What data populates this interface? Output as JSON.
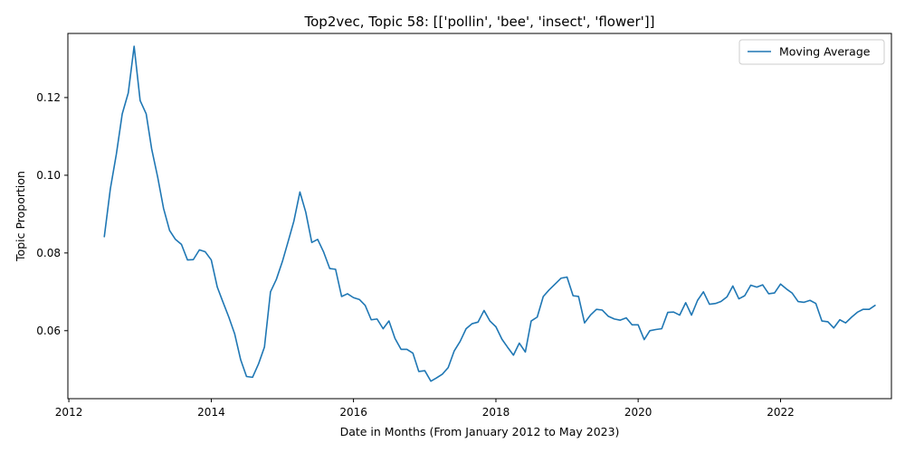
{
  "chart_data": {
    "type": "line",
    "title": "Top2vec, Topic 58: [['pollin', 'bee', 'insect', 'flower']]",
    "xlabel": "Date in Months (From January 2012 to May 2023)",
    "ylabel": "Topic Proportion",
    "xlim": [
      "2011-12-27",
      "2023-07-24"
    ],
    "ylim": [
      0.0425,
      0.1365
    ],
    "x_ticks": [
      "2012",
      "2014",
      "2016",
      "2018",
      "2020",
      "2022"
    ],
    "y_ticks": [
      "0.06",
      "0.08",
      "0.10",
      "0.12"
    ],
    "legend_position": "top-right",
    "grid": false,
    "series": [
      {
        "name": "Moving Average",
        "color": "#1f77b4",
        "points": [
          [
            "2012-07",
            0.0842
          ],
          [
            "2012-08",
            0.0965
          ],
          [
            "2012-09",
            0.1055
          ],
          [
            "2012-10",
            0.1158
          ],
          [
            "2012-11",
            0.1212
          ],
          [
            "2012-12",
            0.1332
          ],
          [
            "2013-01",
            0.1192
          ],
          [
            "2013-02",
            0.1158
          ],
          [
            "2013-03",
            0.1068
          ],
          [
            "2013-04",
            0.0995
          ],
          [
            "2013-05",
            0.0915
          ],
          [
            "2013-06",
            0.0858
          ],
          [
            "2013-07",
            0.0835
          ],
          [
            "2013-08",
            0.0822
          ],
          [
            "2013-09",
            0.0782
          ],
          [
            "2013-10",
            0.0783
          ],
          [
            "2013-11",
            0.0808
          ],
          [
            "2013-12",
            0.0803
          ],
          [
            "2014-01",
            0.0782
          ],
          [
            "2014-02",
            0.0712
          ],
          [
            "2014-03",
            0.0675
          ],
          [
            "2014-04",
            0.0635
          ],
          [
            "2014-05",
            0.0592
          ],
          [
            "2014-06",
            0.0525
          ],
          [
            "2014-07",
            0.0482
          ],
          [
            "2014-08",
            0.048
          ],
          [
            "2014-09",
            0.0515
          ],
          [
            "2014-10",
            0.0558
          ],
          [
            "2014-11",
            0.07
          ],
          [
            "2014-12",
            0.0732
          ],
          [
            "2015-01",
            0.0778
          ],
          [
            "2015-02",
            0.0832
          ],
          [
            "2015-03",
            0.0882
          ],
          [
            "2015-04",
            0.0957
          ],
          [
            "2015-05",
            0.0905
          ],
          [
            "2015-06",
            0.0827
          ],
          [
            "2015-07",
            0.0835
          ],
          [
            "2015-08",
            0.0802
          ],
          [
            "2015-09",
            0.076
          ],
          [
            "2015-10",
            0.0758
          ],
          [
            "2015-11",
            0.0688
          ],
          [
            "2015-12",
            0.0695
          ],
          [
            "2016-01",
            0.0685
          ],
          [
            "2016-02",
            0.068
          ],
          [
            "2016-03",
            0.0665
          ],
          [
            "2016-04",
            0.0628
          ],
          [
            "2016-05",
            0.063
          ],
          [
            "2016-06",
            0.0605
          ],
          [
            "2016-07",
            0.0625
          ],
          [
            "2016-08",
            0.058
          ],
          [
            "2016-09",
            0.0552
          ],
          [
            "2016-10",
            0.0552
          ],
          [
            "2016-11",
            0.0542
          ],
          [
            "2016-12",
            0.0495
          ],
          [
            "2017-01",
            0.0497
          ],
          [
            "2017-02",
            0.047
          ],
          [
            "2017-03",
            0.0478
          ],
          [
            "2017-04",
            0.0488
          ],
          [
            "2017-05",
            0.0505
          ],
          [
            "2017-06",
            0.0548
          ],
          [
            "2017-07",
            0.0572
          ],
          [
            "2017-08",
            0.0605
          ],
          [
            "2017-09",
            0.0618
          ],
          [
            "2017-10",
            0.0622
          ],
          [
            "2017-11",
            0.0652
          ],
          [
            "2017-12",
            0.0625
          ],
          [
            "2018-01",
            0.061
          ],
          [
            "2018-02",
            0.0578
          ],
          [
            "2018-03",
            0.0558
          ],
          [
            "2018-04",
            0.0537
          ],
          [
            "2018-05",
            0.0568
          ],
          [
            "2018-06",
            0.0545
          ],
          [
            "2018-07",
            0.0625
          ],
          [
            "2018-08",
            0.0635
          ],
          [
            "2018-09",
            0.0688
          ],
          [
            "2018-10",
            0.0705
          ],
          [
            "2018-11",
            0.072
          ],
          [
            "2018-12",
            0.0735
          ],
          [
            "2019-01",
            0.0738
          ],
          [
            "2019-02",
            0.069
          ],
          [
            "2019-03",
            0.0688
          ],
          [
            "2019-04",
            0.062
          ],
          [
            "2019-05",
            0.064
          ],
          [
            "2019-06",
            0.0655
          ],
          [
            "2019-07",
            0.0653
          ],
          [
            "2019-08",
            0.0637
          ],
          [
            "2019-09",
            0.063
          ],
          [
            "2019-10",
            0.0627
          ],
          [
            "2019-11",
            0.0633
          ],
          [
            "2019-12",
            0.0615
          ],
          [
            "2020-01",
            0.0615
          ],
          [
            "2020-02",
            0.0577
          ],
          [
            "2020-03",
            0.06
          ],
          [
            "2020-04",
            0.0603
          ],
          [
            "2020-05",
            0.0605
          ],
          [
            "2020-06",
            0.0647
          ],
          [
            "2020-07",
            0.0648
          ],
          [
            "2020-08",
            0.064
          ],
          [
            "2020-09",
            0.0672
          ],
          [
            "2020-10",
            0.064
          ],
          [
            "2020-11",
            0.0678
          ],
          [
            "2020-12",
            0.07
          ],
          [
            "2021-01",
            0.0668
          ],
          [
            "2021-02",
            0.067
          ],
          [
            "2021-03",
            0.0675
          ],
          [
            "2021-04",
            0.0687
          ],
          [
            "2021-05",
            0.0715
          ],
          [
            "2021-06",
            0.0682
          ],
          [
            "2021-07",
            0.069
          ],
          [
            "2021-08",
            0.0717
          ],
          [
            "2021-09",
            0.0712
          ],
          [
            "2021-10",
            0.0718
          ],
          [
            "2021-11",
            0.0695
          ],
          [
            "2021-12",
            0.0697
          ],
          [
            "2022-01",
            0.072
          ],
          [
            "2022-02",
            0.0707
          ],
          [
            "2022-03",
            0.0697
          ],
          [
            "2022-04",
            0.0675
          ],
          [
            "2022-05",
            0.0673
          ],
          [
            "2022-06",
            0.0678
          ],
          [
            "2022-07",
            0.067
          ],
          [
            "2022-08",
            0.0625
          ],
          [
            "2022-09",
            0.0623
          ],
          [
            "2022-10",
            0.0607
          ],
          [
            "2022-11",
            0.0628
          ],
          [
            "2022-12",
            0.062
          ],
          [
            "2023-01",
            0.0635
          ],
          [
            "2023-02",
            0.0648
          ],
          [
            "2023-03",
            0.0655
          ],
          [
            "2023-04",
            0.0655
          ],
          [
            "2023-05",
            0.0665
          ]
        ]
      }
    ]
  }
}
